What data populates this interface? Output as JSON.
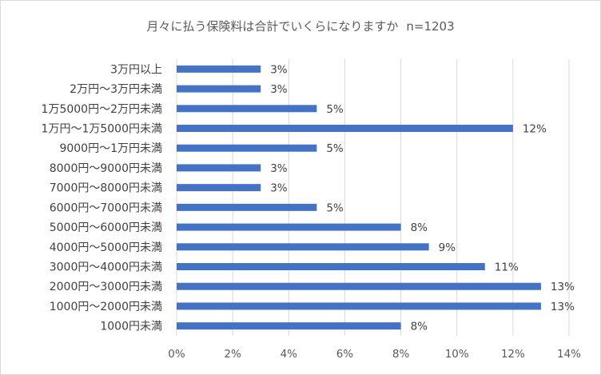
{
  "chart_data": {
    "type": "bar",
    "orientation": "horizontal",
    "title": "月々に払う保険料は合計でいくらになりますか",
    "sample_size": "n=1203",
    "categories": [
      "3万円以上",
      "2万円～3万円未満",
      "1万5000円～2万円未満",
      "1万円～1万5000円未満",
      "9000円～1万円未満",
      "8000円～9000円未満",
      "7000円～8000円未満",
      "6000円～7000円未満",
      "5000円～6000円未満",
      "4000円～5000円未満",
      "3000円～4000円未満",
      "2000円～3000円未満",
      "1000円～2000円未満",
      "1000円未満"
    ],
    "values": [
      3,
      3,
      5,
      12,
      5,
      3,
      3,
      5,
      8,
      9,
      11,
      13,
      13,
      8
    ],
    "data_labels": [
      "3%",
      "3%",
      "5%",
      "12%",
      "5%",
      "3%",
      "3%",
      "5%",
      "8%",
      "9%",
      "11%",
      "13%",
      "13%",
      "8%"
    ],
    "x_ticks": [
      0,
      2,
      4,
      6,
      8,
      10,
      12,
      14
    ],
    "x_tick_labels": [
      "0%",
      "2%",
      "4%",
      "6%",
      "8%",
      "10%",
      "12%",
      "14%"
    ],
    "xlim": [
      0,
      14
    ],
    "xlabel": "",
    "ylabel": "",
    "grid": "vertical",
    "legend": "none",
    "colors": {
      "bar": "#4472c4",
      "grid": "#d9d9d9",
      "frame": "#d9d9d9"
    }
  }
}
